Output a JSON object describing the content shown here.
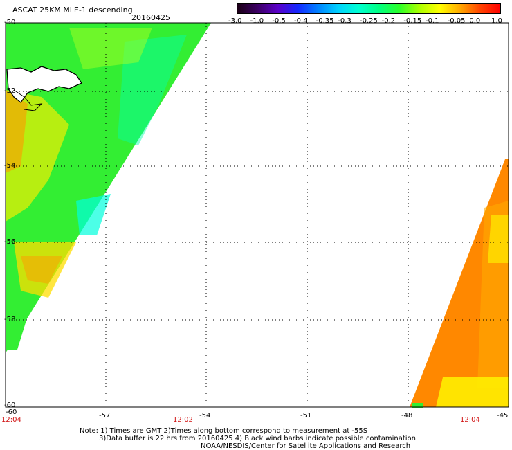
{
  "header": {
    "title": "ASCAT 25KM MLE-1 descending",
    "date": "20160425"
  },
  "colorbar": {
    "labels": [
      "-3.0",
      "-1.0",
      "-0.5",
      "-0.4",
      "-0.35",
      "-0.3",
      "-0.25",
      "-0.2",
      "-0.15",
      "-0.1",
      "-0.05",
      "0.0",
      "1.0"
    ],
    "colors": [
      "#1a0014",
      "#3c0064",
      "#5a00c8",
      "#1428ff",
      "#0082ff",
      "#00d2ff",
      "#00ffd2",
      "#00ff82",
      "#2aff2a",
      "#aaff00",
      "#ffff00",
      "#ffaa00",
      "#ff4400",
      "#ff0000"
    ]
  },
  "axes": {
    "lat_labels": [
      "-50",
      "-52",
      "-54",
      "-56",
      "-58",
      "-60"
    ],
    "lon_labels": [
      "-57",
      "-54",
      "-51",
      "-48",
      "-45"
    ],
    "lon_label_start": "-60"
  },
  "times": [
    "12:04",
    "12:02",
    "12:04"
  ],
  "notes": {
    "line1": "Note: 1) Times are GMT 2)Times along bottom correspond to measurement at -55S",
    "line2": "3)Data buffer is 22 hrs from 20160425 4) Black wind barbs indicate possible contamination",
    "line3": "NOAA/NESDIS/Center for Satellite Applications and Research"
  },
  "swath_colors": {
    "green": "#33ee33",
    "lightgreen": "#66ff44",
    "yellow": "#ffee00",
    "orange": "#ff8800",
    "cyan": "#00ffdd",
    "teal": "#00eeaa"
  }
}
